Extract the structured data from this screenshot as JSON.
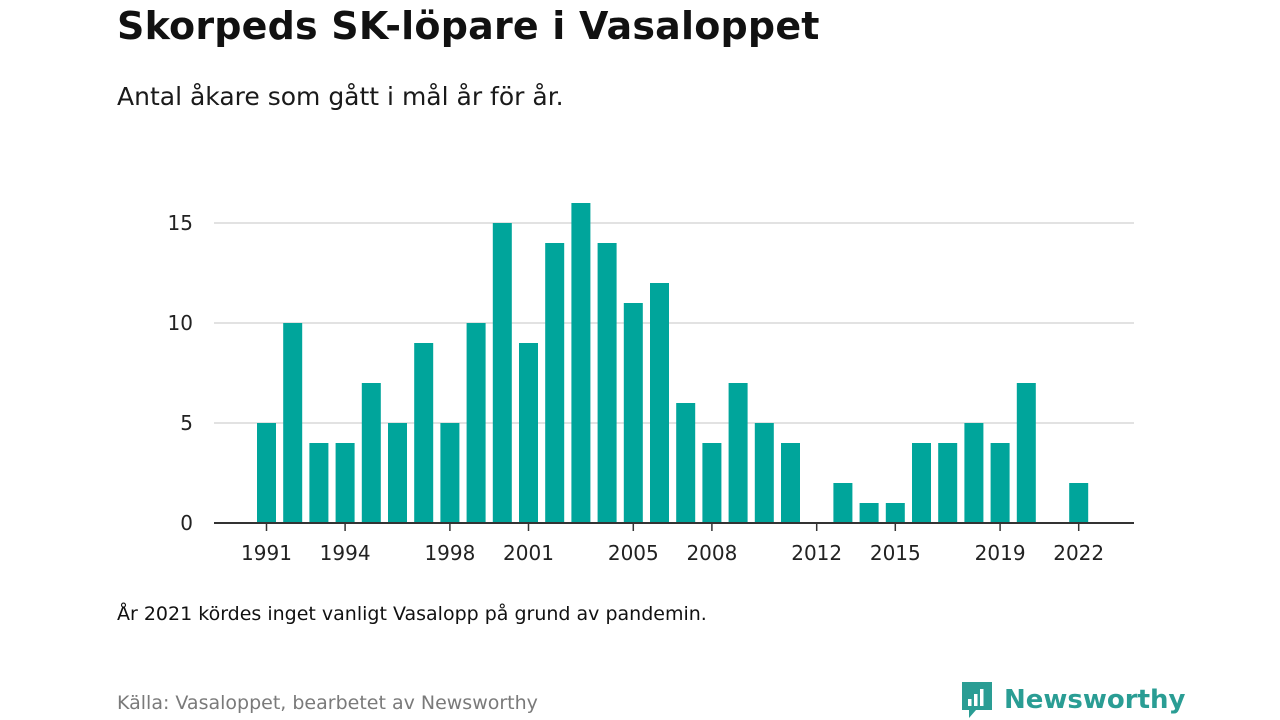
{
  "header": {
    "title": "Skorpeds SK-löpare i Vasaloppet",
    "subtitle": "Antal åkare som gått i mål år för år."
  },
  "footer": {
    "note": "År 2021 kördes inget vanligt Vasalopp på grund av pandemin.",
    "source": "Källa: Vasaloppet, bearbetet av Newsworthy",
    "brand": "Newsworthy",
    "brand_icon": "newsworthy-logo-icon"
  },
  "colors": {
    "bar": "#00a59b",
    "grid": "#d9d9d9",
    "axis": "#333333",
    "brand": "#2a9d94"
  },
  "chart_data": {
    "type": "bar",
    "title": "Skorpeds SK-löpare i Vasaloppet",
    "subtitle": "Antal åkare som gått i mål år för år.",
    "xlabel": "",
    "ylabel": "",
    "ylim": [
      0,
      16
    ],
    "yticks": [
      0,
      5,
      10,
      15
    ],
    "xticks": [
      1991,
      1994,
      1998,
      2001,
      2005,
      2008,
      2012,
      2015,
      2019,
      2022
    ],
    "grid": true,
    "x": [
      1991,
      1992,
      1993,
      1994,
      1995,
      1996,
      1997,
      1998,
      1999,
      2000,
      2001,
      2002,
      2003,
      2004,
      2005,
      2006,
      2007,
      2008,
      2009,
      2010,
      2011,
      2012,
      2013,
      2014,
      2015,
      2016,
      2017,
      2018,
      2019,
      2020,
      2021,
      2022
    ],
    "values": [
      5,
      10,
      4,
      4,
      7,
      5,
      9,
      5,
      10,
      15,
      9,
      14,
      16,
      14,
      11,
      12,
      6,
      4,
      7,
      5,
      4,
      0,
      2,
      1,
      1,
      4,
      4,
      5,
      4,
      7,
      0,
      2
    ]
  }
}
